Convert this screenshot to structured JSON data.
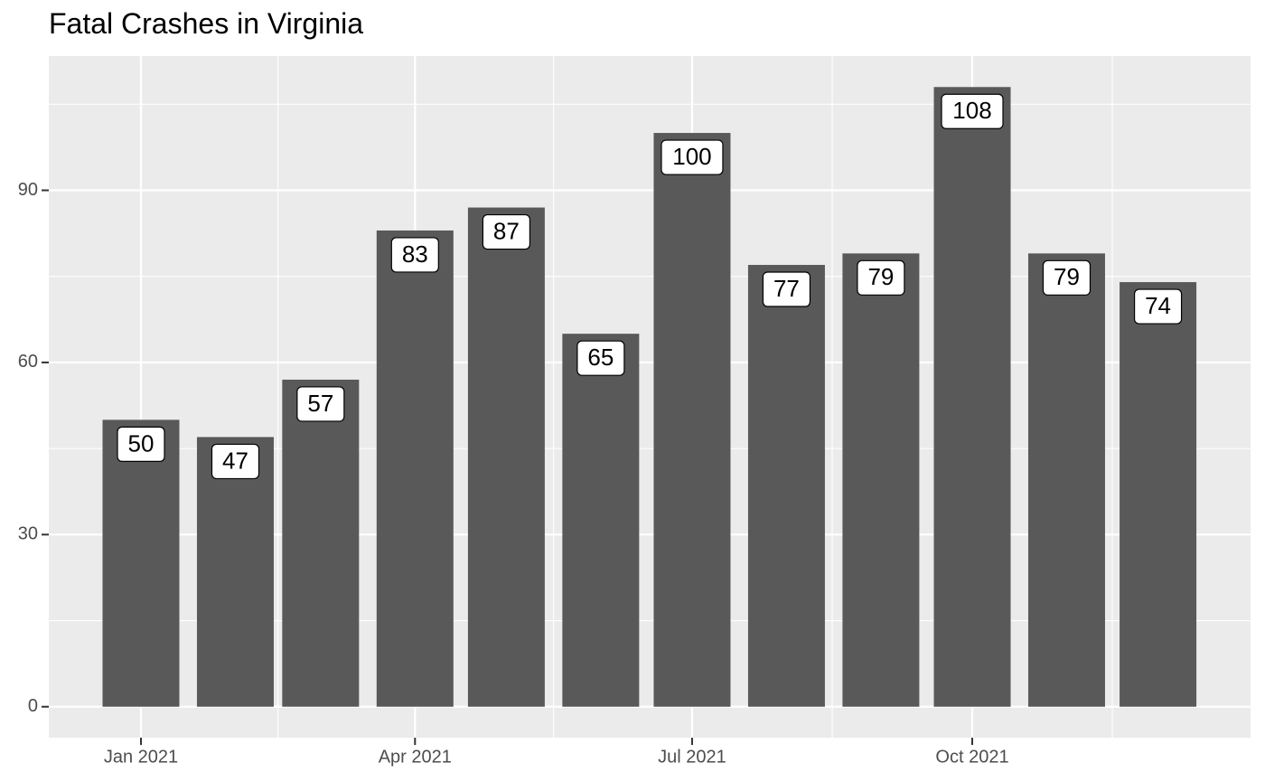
{
  "chart_data": {
    "type": "bar",
    "title": "Fatal Crashes in Virginia",
    "xlabel": "",
    "ylabel": "",
    "x": [
      "2021-01",
      "2021-02",
      "2021-03",
      "2021-04",
      "2021-05",
      "2021-06",
      "2021-07",
      "2021-08",
      "2021-09",
      "2021-10",
      "2021-11",
      "2021-12"
    ],
    "values": [
      50,
      47,
      57,
      83,
      87,
      65,
      100,
      77,
      79,
      108,
      79,
      74
    ],
    "data_labels": [
      "50",
      "47",
      "57",
      "83",
      "87",
      "65",
      "100",
      "77",
      "79",
      "108",
      "79",
      "74"
    ],
    "x_tick_labels": [
      "Jan 2021",
      "Apr 2021",
      "Jul 2021",
      "Oct 2021"
    ],
    "y_tick_labels": [
      "0",
      "30",
      "60",
      "90"
    ],
    "y_ticks": [
      0,
      30,
      60,
      90
    ],
    "ylim": [
      -5.4,
      113.4
    ],
    "grid": true,
    "legend": "none",
    "colors": {
      "panel_background": "#EBEBEB",
      "grid": "#FFFFFF",
      "bar_fill": "#595959",
      "label_fill": "#FFFFFF",
      "text": "#000000",
      "tick_text": "#4D4D4D",
      "tick": "#333333"
    }
  }
}
